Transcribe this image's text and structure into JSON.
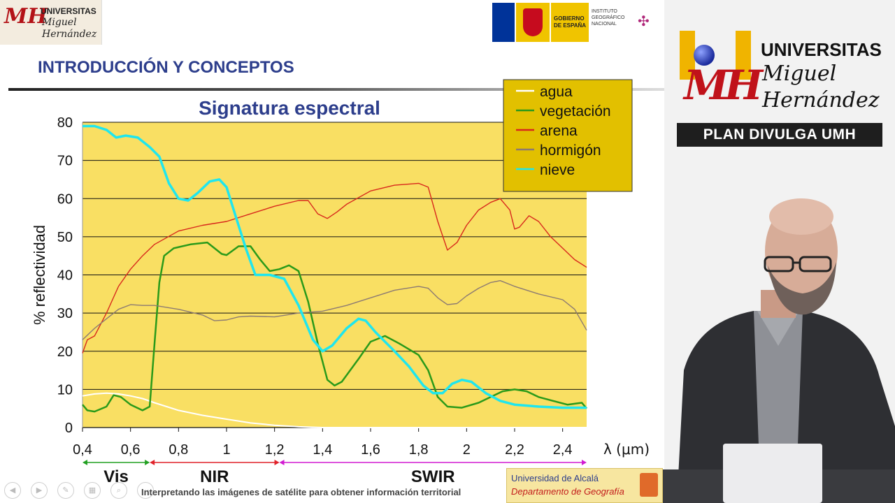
{
  "header": {
    "small_logo": {
      "line1": "UNIVERSITAS",
      "line2": "Miguel",
      "line3": "Hernández"
    },
    "gov_logo": {
      "line1": "GOBIERNO",
      "line2": "DE ESPAÑA",
      "institute": "INSTITUTO GEOGRÁFICO NACIONAL"
    }
  },
  "slide": {
    "section_title": "INTRODUCCIÓN Y CONCEPTOS",
    "subtitle": "Interpretando las imágenes de satélite para obtener información territorial",
    "footer_logo": {
      "line1": "Universidad de Alcalá",
      "line2": "Departamento de Geografía"
    }
  },
  "chart_data": {
    "type": "line",
    "title": "Signatura espectral",
    "ylabel": "% reflectividad",
    "xlabel": "λ (μm)",
    "xlim": [
      0.4,
      2.5
    ],
    "ylim": [
      0,
      80
    ],
    "x_ticks": [
      0.4,
      0.6,
      0.8,
      1.0,
      1.2,
      1.4,
      1.6,
      1.8,
      2.0,
      2.2,
      2.4
    ],
    "x_tick_labels": [
      "0,4",
      "0,6",
      "0,8",
      "1",
      "1,2",
      "1,4",
      "1,6",
      "1,8",
      "2",
      "2,2",
      "2,4"
    ],
    "y_ticks": [
      0,
      10,
      20,
      30,
      40,
      50,
      60,
      70,
      80
    ],
    "grid": "horizontal",
    "legend": "top-right",
    "plot_background": "#f9df63",
    "regions": [
      {
        "label": "Vis",
        "from": 0.4,
        "to": 0.68,
        "color": "#22a022"
      },
      {
        "label": "NIR",
        "from": 0.68,
        "to": 1.22,
        "color": "#e0222a"
      },
      {
        "label": "SWIR",
        "from": 1.22,
        "to": 2.5,
        "color": "#d21bd2"
      }
    ],
    "series": [
      {
        "name": "agua",
        "color": "#ffffff",
        "points": [
          [
            0.4,
            8.3
          ],
          [
            0.45,
            8.8
          ],
          [
            0.5,
            9.0
          ],
          [
            0.55,
            8.8
          ],
          [
            0.6,
            8.3
          ],
          [
            0.65,
            7.6
          ],
          [
            0.7,
            6.5
          ],
          [
            0.8,
            4.5
          ],
          [
            0.9,
            3.2
          ],
          [
            1.0,
            2.2
          ],
          [
            1.1,
            1.2
          ],
          [
            1.2,
            0.6
          ],
          [
            1.3,
            0.2
          ],
          [
            1.4,
            0
          ],
          [
            1.6,
            0
          ],
          [
            2.5,
            0
          ]
        ]
      },
      {
        "name": "vegetación",
        "color": "#2a9a1a",
        "points": [
          [
            0.4,
            6
          ],
          [
            0.42,
            4.5
          ],
          [
            0.45,
            4.2
          ],
          [
            0.5,
            5.5
          ],
          [
            0.53,
            8.5
          ],
          [
            0.56,
            8
          ],
          [
            0.6,
            6
          ],
          [
            0.65,
            4.5
          ],
          [
            0.68,
            5.5
          ],
          [
            0.7,
            22
          ],
          [
            0.72,
            38
          ],
          [
            0.74,
            45
          ],
          [
            0.78,
            47
          ],
          [
            0.85,
            48
          ],
          [
            0.92,
            48.5
          ],
          [
            0.98,
            45.5
          ],
          [
            1.0,
            45.2
          ],
          [
            1.05,
            47.5
          ],
          [
            1.1,
            47.5
          ],
          [
            1.14,
            44
          ],
          [
            1.18,
            41
          ],
          [
            1.22,
            41.5
          ],
          [
            1.26,
            42.5
          ],
          [
            1.3,
            41
          ],
          [
            1.34,
            33
          ],
          [
            1.38,
            22
          ],
          [
            1.42,
            12.5
          ],
          [
            1.45,
            11
          ],
          [
            1.48,
            12
          ],
          [
            1.55,
            18
          ],
          [
            1.6,
            22.5
          ],
          [
            1.66,
            24
          ],
          [
            1.72,
            22
          ],
          [
            1.8,
            19
          ],
          [
            1.84,
            15
          ],
          [
            1.88,
            8
          ],
          [
            1.92,
            5.5
          ],
          [
            1.98,
            5.2
          ],
          [
            2.05,
            6.5
          ],
          [
            2.1,
            8
          ],
          [
            2.15,
            9.5
          ],
          [
            2.2,
            10
          ],
          [
            2.25,
            9.5
          ],
          [
            2.3,
            8
          ],
          [
            2.36,
            7
          ],
          [
            2.42,
            6
          ],
          [
            2.48,
            6.5
          ],
          [
            2.5,
            5
          ]
        ]
      },
      {
        "name": "arena",
        "color": "#d8281c",
        "points": [
          [
            0.4,
            19.5
          ],
          [
            0.42,
            23
          ],
          [
            0.45,
            24
          ],
          [
            0.5,
            30
          ],
          [
            0.55,
            37
          ],
          [
            0.6,
            41.5
          ],
          [
            0.65,
            45
          ],
          [
            0.7,
            48
          ],
          [
            0.8,
            51.5
          ],
          [
            0.9,
            53
          ],
          [
            1.0,
            54
          ],
          [
            1.1,
            56
          ],
          [
            1.2,
            58
          ],
          [
            1.3,
            59.5
          ],
          [
            1.34,
            59.5
          ],
          [
            1.38,
            56
          ],
          [
            1.42,
            54.8
          ],
          [
            1.46,
            56.5
          ],
          [
            1.5,
            58.5
          ],
          [
            1.6,
            62
          ],
          [
            1.7,
            63.5
          ],
          [
            1.8,
            64
          ],
          [
            1.84,
            63
          ],
          [
            1.88,
            54
          ],
          [
            1.92,
            46.5
          ],
          [
            1.96,
            48.5
          ],
          [
            2.0,
            53
          ],
          [
            2.05,
            57
          ],
          [
            2.1,
            59
          ],
          [
            2.14,
            60
          ],
          [
            2.18,
            57
          ],
          [
            2.2,
            52
          ],
          [
            2.22,
            52.5
          ],
          [
            2.26,
            55.5
          ],
          [
            2.3,
            54
          ],
          [
            2.35,
            50
          ],
          [
            2.4,
            47
          ],
          [
            2.45,
            44
          ],
          [
            2.5,
            42
          ]
        ]
      },
      {
        "name": "hormigón",
        "color": "#8c7a72",
        "points": [
          [
            0.4,
            23
          ],
          [
            0.45,
            26
          ],
          [
            0.5,
            28.5
          ],
          [
            0.55,
            31
          ],
          [
            0.6,
            32.2
          ],
          [
            0.65,
            32
          ],
          [
            0.7,
            32
          ],
          [
            0.8,
            31
          ],
          [
            0.9,
            29.5
          ],
          [
            0.95,
            28
          ],
          [
            1.0,
            28.2
          ],
          [
            1.05,
            29
          ],
          [
            1.1,
            29.2
          ],
          [
            1.2,
            29
          ],
          [
            1.3,
            30
          ],
          [
            1.4,
            30.5
          ],
          [
            1.5,
            32
          ],
          [
            1.6,
            34
          ],
          [
            1.7,
            36
          ],
          [
            1.8,
            37
          ],
          [
            1.84,
            36.5
          ],
          [
            1.88,
            34
          ],
          [
            1.92,
            32.2
          ],
          [
            1.96,
            32.5
          ],
          [
            2.0,
            34.5
          ],
          [
            2.05,
            36.5
          ],
          [
            2.1,
            38
          ],
          [
            2.14,
            38.5
          ],
          [
            2.2,
            37
          ],
          [
            2.3,
            35
          ],
          [
            2.4,
            33.5
          ],
          [
            2.45,
            31
          ],
          [
            2.5,
            25.5
          ]
        ]
      },
      {
        "name": "nieve",
        "color": "#1fe6ee",
        "points": [
          [
            0.4,
            79
          ],
          [
            0.45,
            79
          ],
          [
            0.5,
            78
          ],
          [
            0.54,
            76
          ],
          [
            0.58,
            76.5
          ],
          [
            0.63,
            76
          ],
          [
            0.68,
            73.5
          ],
          [
            0.72,
            71
          ],
          [
            0.76,
            64
          ],
          [
            0.8,
            60
          ],
          [
            0.84,
            59.5
          ],
          [
            0.88,
            61.5
          ],
          [
            0.93,
            64.5
          ],
          [
            0.97,
            65
          ],
          [
            1.0,
            63
          ],
          [
            1.04,
            55
          ],
          [
            1.08,
            47
          ],
          [
            1.12,
            40
          ],
          [
            1.18,
            40
          ],
          [
            1.24,
            39
          ],
          [
            1.3,
            32
          ],
          [
            1.36,
            23
          ],
          [
            1.4,
            20
          ],
          [
            1.44,
            21.5
          ],
          [
            1.5,
            26
          ],
          [
            1.55,
            28.5
          ],
          [
            1.58,
            28
          ],
          [
            1.62,
            25
          ],
          [
            1.7,
            20
          ],
          [
            1.76,
            16
          ],
          [
            1.82,
            11
          ],
          [
            1.86,
            9
          ],
          [
            1.9,
            9
          ],
          [
            1.94,
            11.5
          ],
          [
            1.98,
            12.5
          ],
          [
            2.02,
            12
          ],
          [
            2.08,
            9
          ],
          [
            2.14,
            7
          ],
          [
            2.2,
            6
          ],
          [
            2.3,
            5.5
          ],
          [
            2.4,
            5.2
          ],
          [
            2.5,
            5.2
          ]
        ]
      }
    ]
  },
  "right_panel": {
    "logo": {
      "line1": "UNIVERSITAS",
      "line2": "Miguel",
      "line3": "Hernández"
    },
    "banner": "PLAN DIVULGA UMH"
  }
}
